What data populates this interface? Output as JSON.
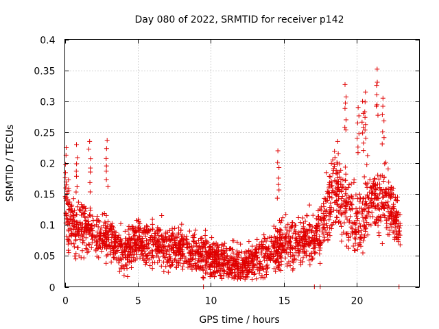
{
  "chart_data": {
    "type": "scatter",
    "title": "Day 080 of 2022, SRMTID for receiver p142",
    "xlabel": "GPS time / hours",
    "ylabel": "SRMTID / TECUs",
    "xlim": [
      0,
      24.3
    ],
    "ylim": [
      0,
      0.4
    ],
    "x_ticks": [
      0,
      5,
      10,
      15,
      20
    ],
    "x_tick_labels": [
      "0",
      "5",
      "10",
      "15",
      "20"
    ],
    "y_ticks": [
      0,
      0.05,
      0.1,
      0.15,
      0.2,
      0.25,
      0.3,
      0.35,
      0.4
    ],
    "y_tick_labels": [
      "0",
      "0.05",
      "0.1",
      "0.15",
      "0.2",
      "0.25",
      "0.3",
      "0.35",
      "0.4"
    ],
    "grid": true,
    "marker": "+",
    "color": "#e00000",
    "series": [
      {
        "name": "SRMTID",
        "envelope": {
          "hours": [
            0,
            0.5,
            1,
            1.5,
            2,
            2.5,
            3,
            3.5,
            4,
            5,
            6,
            7,
            8,
            9,
            10,
            11,
            12,
            13,
            14,
            15,
            16,
            17,
            17.5,
            18,
            18.5,
            19,
            19.5,
            20,
            20.5,
            21,
            21.5,
            22,
            22.5,
            23
          ],
          "median_tecu": [
            0.13,
            0.1,
            0.09,
            0.1,
            0.09,
            0.08,
            0.08,
            0.07,
            0.055,
            0.075,
            0.07,
            0.065,
            0.06,
            0.055,
            0.045,
            0.04,
            0.035,
            0.04,
            0.055,
            0.07,
            0.075,
            0.08,
            0.09,
            0.13,
            0.16,
            0.14,
            0.12,
            0.1,
            0.12,
            0.14,
            0.13,
            0.14,
            0.12,
            0.09
          ],
          "spread_tecu": [
            0.05,
            0.04,
            0.04,
            0.04,
            0.035,
            0.035,
            0.035,
            0.03,
            0.03,
            0.03,
            0.03,
            0.03,
            0.03,
            0.03,
            0.028,
            0.025,
            0.025,
            0.028,
            0.03,
            0.035,
            0.035,
            0.035,
            0.04,
            0.05,
            0.06,
            0.05,
            0.05,
            0.04,
            0.05,
            0.05,
            0.05,
            0.05,
            0.04,
            0.03
          ]
        },
        "spikes": [
          {
            "x": 0.1,
            "y": 0.225
          },
          {
            "x": 0.8,
            "y": 0.23
          },
          {
            "x": 1.7,
            "y": 0.235
          },
          {
            "x": 2.9,
            "y": 0.237
          },
          {
            "x": 14.6,
            "y": 0.22
          },
          {
            "x": 18.7,
            "y": 0.235
          },
          {
            "x": 19.2,
            "y": 0.327
          },
          {
            "x": 20.4,
            "y": 0.3
          },
          {
            "x": 20.6,
            "y": 0.315
          },
          {
            "x": 21.4,
            "y": 0.352
          },
          {
            "x": 21.8,
            "y": 0.305
          },
          {
            "x": 20.1,
            "y": 0.29
          },
          {
            "x": 9.5,
            "y": 0.0
          },
          {
            "x": 17.1,
            "y": 0.0
          },
          {
            "x": 17.5,
            "y": 0.0
          },
          {
            "x": 22.9,
            "y": 0.0
          }
        ]
      }
    ]
  }
}
